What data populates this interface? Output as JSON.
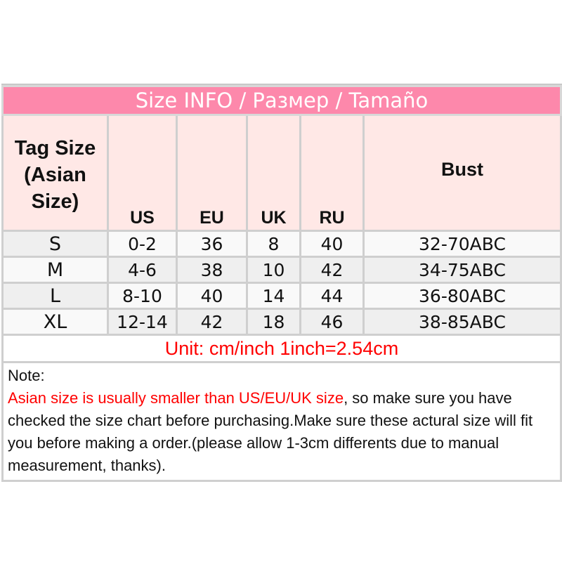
{
  "title": "Size INFO / Размер / Tamaño",
  "headers": {
    "tag_size": "Tag Size (Asian Size)",
    "us": "US",
    "eu": "EU",
    "uk": "UK",
    "ru": "RU",
    "bust": "Bust"
  },
  "rows": [
    {
      "size": "S",
      "us": "0-2",
      "eu": "36",
      "uk": "8",
      "ru": "40",
      "bust": "32-70ABC"
    },
    {
      "size": "M",
      "us": "4-6",
      "eu": "38",
      "uk": "10",
      "ru": "42",
      "bust": "34-75ABC"
    },
    {
      "size": "L",
      "us": "8-10",
      "eu": "40",
      "uk": "14",
      "ru": "44",
      "bust": "36-80ABC"
    },
    {
      "size": "XL",
      "us": "12-14",
      "eu": "42",
      "uk": "18",
      "ru": "46",
      "bust": "38-85ABC"
    }
  ],
  "unit": "Unit: cm/inch 1inch=2.54cm",
  "note": {
    "label": "Note:",
    "warning": "Asian size is usually smaller than US/EU/UK size",
    "body": ", so make sure you have checked the size chart before purchasing.Make sure these actural size will fit you before making a order.(please allow 1-3cm differents due to manual measurement, thanks)."
  },
  "colors": {
    "title_bg": "#fd88ab",
    "header_bg": "#ffe8e6",
    "warning": "#ff0000"
  }
}
